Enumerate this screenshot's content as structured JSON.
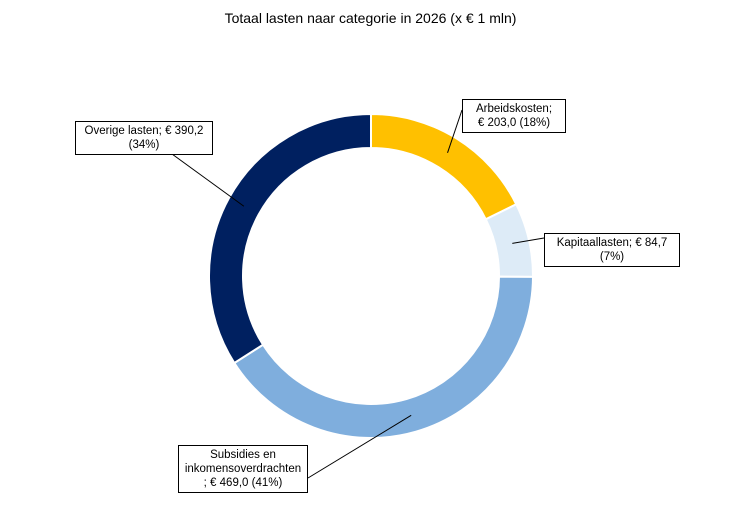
{
  "chart_data": {
    "type": "pie",
    "subtype": "donut",
    "title": "Totaal lasten naar categorie in 2026 (x € 1 mln)",
    "slices": [
      {
        "name": "Arbeidskosten",
        "value": 203.0,
        "percent": 18,
        "color": "#FFC000",
        "label_line1": "Arbeidskosten;",
        "label_line2": "€ 203,0  (18%)"
      },
      {
        "name": "Kapitaallasten",
        "value": 84.7,
        "percent": 7,
        "color": "#DDEBF7",
        "label_line1": "Kapitaallasten; € 84,7",
        "label_line2": "(7%)"
      },
      {
        "name": "Subsidies en inkomensoverdrachten",
        "value": 469.0,
        "percent": 41,
        "color": "#7FAEDD",
        "label_line1": "Subsidies en",
        "label_line2": "inkomensoverdrachten",
        "label_line3": ";  € 469,0  (41%)"
      },
      {
        "name": "Overige lasten",
        "value": 390.2,
        "percent": 34,
        "color": "#002060",
        "label_line1": "Overige lasten; € 390,2",
        "label_line2": "(34%)"
      }
    ],
    "start_angle_deg": 0,
    "direction": "clockwise",
    "legend": "none"
  }
}
